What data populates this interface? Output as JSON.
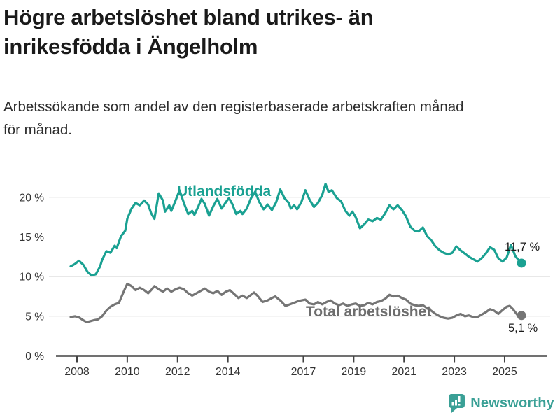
{
  "title": {
    "lines": [
      "Högre arbetslöshet bland utrikes- än",
      "inrikesfödda i Ängelholm"
    ]
  },
  "subtitle": {
    "lines": [
      "Arbetssökande som andel av den registerbaserade arbetskraften månad",
      "för månad."
    ]
  },
  "chart_data": {
    "type": "line",
    "title": "Högre arbetslöshet bland utrikes- än inrikesfödda i Ängelholm",
    "subtitle": "Arbetssökande som andel av den registerbaserade arbetskraften månad för månad.",
    "x_axis": {
      "ticks": [
        2008,
        2010,
        2012,
        2014,
        2017,
        2019,
        2021,
        2023,
        2025
      ],
      "range": [
        2007.7,
        2026.2
      ]
    },
    "y_axis": {
      "ticks": [
        0,
        5,
        10,
        15,
        20
      ],
      "tick_labels": [
        "0 %",
        "5 %",
        "10 %",
        "15 %",
        "20 %"
      ],
      "range": [
        0,
        22.5
      ],
      "grid": true
    },
    "legend_position": "inline-labels",
    "series": [
      {
        "name": "Utlandsfödda",
        "color": "#1aa192",
        "end_label": "11,7 %",
        "end_value": 11.7,
        "points": [
          [
            2007.75,
            11.3
          ],
          [
            2007.92,
            11.6
          ],
          [
            2008.08,
            12.0
          ],
          [
            2008.25,
            11.5
          ],
          [
            2008.42,
            10.6
          ],
          [
            2008.58,
            10.15
          ],
          [
            2008.75,
            10.3
          ],
          [
            2008.92,
            11.3
          ],
          [
            2009.0,
            12.1
          ],
          [
            2009.17,
            13.2
          ],
          [
            2009.33,
            13.0
          ],
          [
            2009.5,
            13.9
          ],
          [
            2009.58,
            13.6
          ],
          [
            2009.75,
            15.1
          ],
          [
            2009.92,
            15.8
          ],
          [
            2010.0,
            17.3
          ],
          [
            2010.17,
            18.6
          ],
          [
            2010.33,
            19.3
          ],
          [
            2010.5,
            19.0
          ],
          [
            2010.67,
            19.6
          ],
          [
            2010.83,
            19.1
          ],
          [
            2010.95,
            18.0
          ],
          [
            2011.08,
            17.3
          ],
          [
            2011.25,
            20.5
          ],
          [
            2011.42,
            19.6
          ],
          [
            2011.5,
            18.2
          ],
          [
            2011.67,
            19.0
          ],
          [
            2011.75,
            18.3
          ],
          [
            2011.92,
            19.6
          ],
          [
            2012.08,
            20.9
          ],
          [
            2012.25,
            19.3
          ],
          [
            2012.42,
            17.9
          ],
          [
            2012.58,
            18.3
          ],
          [
            2012.67,
            17.8
          ],
          [
            2012.83,
            18.9
          ],
          [
            2012.95,
            19.8
          ],
          [
            2013.08,
            19.2
          ],
          [
            2013.25,
            17.7
          ],
          [
            2013.42,
            18.9
          ],
          [
            2013.58,
            19.8
          ],
          [
            2013.75,
            18.6
          ],
          [
            2013.92,
            19.4
          ],
          [
            2014.04,
            19.9
          ],
          [
            2014.17,
            19.2
          ],
          [
            2014.33,
            17.9
          ],
          [
            2014.5,
            18.3
          ],
          [
            2014.58,
            17.9
          ],
          [
            2014.75,
            18.6
          ],
          [
            2014.92,
            19.9
          ],
          [
            2015.08,
            20.7
          ],
          [
            2015.25,
            19.4
          ],
          [
            2015.42,
            18.5
          ],
          [
            2015.58,
            19.1
          ],
          [
            2015.75,
            18.4
          ],
          [
            2015.92,
            19.4
          ],
          [
            2016.08,
            21.0
          ],
          [
            2016.25,
            19.9
          ],
          [
            2016.42,
            19.3
          ],
          [
            2016.5,
            18.6
          ],
          [
            2016.63,
            19.0
          ],
          [
            2016.75,
            18.5
          ],
          [
            2016.92,
            19.4
          ],
          [
            2017.08,
            20.9
          ],
          [
            2017.25,
            19.7
          ],
          [
            2017.42,
            18.8
          ],
          [
            2017.58,
            19.3
          ],
          [
            2017.75,
            20.3
          ],
          [
            2017.88,
            21.7
          ],
          [
            2018.0,
            20.7
          ],
          [
            2018.13,
            20.9
          ],
          [
            2018.33,
            19.9
          ],
          [
            2018.5,
            19.5
          ],
          [
            2018.67,
            18.3
          ],
          [
            2018.83,
            17.7
          ],
          [
            2018.95,
            18.2
          ],
          [
            2019.08,
            17.5
          ],
          [
            2019.25,
            16.1
          ],
          [
            2019.42,
            16.6
          ],
          [
            2019.58,
            17.2
          ],
          [
            2019.75,
            17.0
          ],
          [
            2019.92,
            17.4
          ],
          [
            2020.08,
            17.2
          ],
          [
            2020.25,
            18.0
          ],
          [
            2020.42,
            19.0
          ],
          [
            2020.58,
            18.5
          ],
          [
            2020.75,
            19.0
          ],
          [
            2020.92,
            18.4
          ],
          [
            2021.08,
            17.6
          ],
          [
            2021.25,
            16.3
          ],
          [
            2021.42,
            15.8
          ],
          [
            2021.58,
            15.7
          ],
          [
            2021.75,
            16.2
          ],
          [
            2021.92,
            15.1
          ],
          [
            2022.08,
            14.6
          ],
          [
            2022.25,
            13.8
          ],
          [
            2022.42,
            13.3
          ],
          [
            2022.58,
            13.0
          ],
          [
            2022.75,
            12.8
          ],
          [
            2022.92,
            13.0
          ],
          [
            2023.08,
            13.8
          ],
          [
            2023.25,
            13.3
          ],
          [
            2023.42,
            12.9
          ],
          [
            2023.58,
            12.5
          ],
          [
            2023.75,
            12.2
          ],
          [
            2023.92,
            11.9
          ],
          [
            2024.08,
            12.3
          ],
          [
            2024.25,
            12.9
          ],
          [
            2024.42,
            13.7
          ],
          [
            2024.58,
            13.4
          ],
          [
            2024.75,
            12.3
          ],
          [
            2024.92,
            11.9
          ],
          [
            2025.08,
            12.4
          ],
          [
            2025.25,
            14.0
          ],
          [
            2025.42,
            12.6
          ],
          [
            2025.55,
            12.1
          ],
          [
            2025.67,
            11.7
          ]
        ]
      },
      {
        "name": "Total arbetslöshet",
        "color": "#757575",
        "end_label": "5,1 %",
        "end_value": 5.1,
        "points": [
          [
            2007.75,
            4.9
          ],
          [
            2007.92,
            5.0
          ],
          [
            2008.08,
            4.85
          ],
          [
            2008.25,
            4.5
          ],
          [
            2008.38,
            4.25
          ],
          [
            2008.5,
            4.35
          ],
          [
            2008.67,
            4.5
          ],
          [
            2008.83,
            4.6
          ],
          [
            2009.0,
            5.0
          ],
          [
            2009.17,
            5.7
          ],
          [
            2009.33,
            6.2
          ],
          [
            2009.5,
            6.5
          ],
          [
            2009.67,
            6.7
          ],
          [
            2009.75,
            7.3
          ],
          [
            2009.9,
            8.4
          ],
          [
            2010.0,
            9.1
          ],
          [
            2010.17,
            8.8
          ],
          [
            2010.33,
            8.3
          ],
          [
            2010.5,
            8.6
          ],
          [
            2010.67,
            8.3
          ],
          [
            2010.83,
            7.9
          ],
          [
            2010.95,
            8.3
          ],
          [
            2011.08,
            8.8
          ],
          [
            2011.25,
            8.4
          ],
          [
            2011.42,
            8.1
          ],
          [
            2011.58,
            8.5
          ],
          [
            2011.75,
            8.1
          ],
          [
            2011.92,
            8.4
          ],
          [
            2012.08,
            8.6
          ],
          [
            2012.25,
            8.4
          ],
          [
            2012.42,
            7.9
          ],
          [
            2012.58,
            7.6
          ],
          [
            2012.75,
            7.9
          ],
          [
            2012.92,
            8.2
          ],
          [
            2013.08,
            8.5
          ],
          [
            2013.25,
            8.1
          ],
          [
            2013.42,
            7.9
          ],
          [
            2013.58,
            8.2
          ],
          [
            2013.75,
            7.7
          ],
          [
            2013.92,
            8.1
          ],
          [
            2014.08,
            8.3
          ],
          [
            2014.25,
            7.8
          ],
          [
            2014.42,
            7.3
          ],
          [
            2014.58,
            7.6
          ],
          [
            2014.75,
            7.3
          ],
          [
            2014.92,
            7.7
          ],
          [
            2015.04,
            8.0
          ],
          [
            2015.17,
            7.6
          ],
          [
            2015.38,
            6.8
          ],
          [
            2015.58,
            7.0
          ],
          [
            2015.75,
            7.3
          ],
          [
            2015.88,
            7.5
          ],
          [
            2016.08,
            7.0
          ],
          [
            2016.29,
            6.3
          ],
          [
            2016.46,
            6.5
          ],
          [
            2016.63,
            6.7
          ],
          [
            2016.79,
            6.9
          ],
          [
            2016.92,
            7.0
          ],
          [
            2017.08,
            7.1
          ],
          [
            2017.25,
            6.6
          ],
          [
            2017.42,
            6.5
          ],
          [
            2017.58,
            6.8
          ],
          [
            2017.75,
            6.5
          ],
          [
            2017.92,
            6.8
          ],
          [
            2018.08,
            7.0
          ],
          [
            2018.25,
            6.6
          ],
          [
            2018.42,
            6.4
          ],
          [
            2018.58,
            6.6
          ],
          [
            2018.75,
            6.3
          ],
          [
            2018.92,
            6.5
          ],
          [
            2019.08,
            6.6
          ],
          [
            2019.25,
            6.3
          ],
          [
            2019.42,
            6.4
          ],
          [
            2019.58,
            6.7
          ],
          [
            2019.75,
            6.5
          ],
          [
            2019.92,
            6.8
          ],
          [
            2020.08,
            6.9
          ],
          [
            2020.25,
            7.2
          ],
          [
            2020.42,
            7.7
          ],
          [
            2020.58,
            7.5
          ],
          [
            2020.75,
            7.6
          ],
          [
            2020.92,
            7.3
          ],
          [
            2021.08,
            7.1
          ],
          [
            2021.25,
            6.6
          ],
          [
            2021.42,
            6.4
          ],
          [
            2021.58,
            6.3
          ],
          [
            2021.75,
            6.4
          ],
          [
            2021.92,
            6.0
          ],
          [
            2022.08,
            5.7
          ],
          [
            2022.25,
            5.3
          ],
          [
            2022.42,
            5.0
          ],
          [
            2022.58,
            4.8
          ],
          [
            2022.75,
            4.7
          ],
          [
            2022.92,
            4.8
          ],
          [
            2023.08,
            5.1
          ],
          [
            2023.25,
            5.3
          ],
          [
            2023.42,
            5.0
          ],
          [
            2023.58,
            5.1
          ],
          [
            2023.75,
            4.9
          ],
          [
            2023.92,
            4.9
          ],
          [
            2024.08,
            5.2
          ],
          [
            2024.25,
            5.5
          ],
          [
            2024.42,
            5.9
          ],
          [
            2024.58,
            5.7
          ],
          [
            2024.75,
            5.3
          ],
          [
            2024.92,
            5.8
          ],
          [
            2025.08,
            6.2
          ],
          [
            2025.2,
            6.3
          ],
          [
            2025.33,
            5.9
          ],
          [
            2025.5,
            5.2
          ],
          [
            2025.58,
            5.0
          ],
          [
            2025.67,
            5.1
          ]
        ]
      }
    ]
  },
  "footer": {
    "brand": "Newsworthy",
    "brand_color": "#3aa096",
    "icon": "bar-chart-speech-bubble-icon"
  },
  "colors": {
    "title": "#1a1a1a",
    "subtitle": "#2d2d2d",
    "axis_text": "#333333",
    "axis_line": "#424242",
    "gridline": "#e0e0e0"
  }
}
